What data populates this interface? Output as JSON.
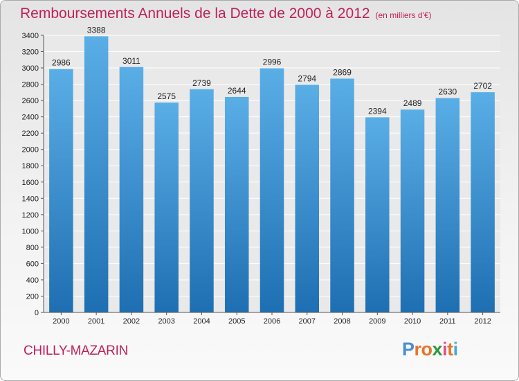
{
  "title": "Remboursements Annuels de la Dette de 2000 à 2012",
  "unit_note": "(en milliers d'€)",
  "city": "CHILLY-MAZARIN",
  "brand": {
    "letters": [
      "P",
      "r",
      "o",
      "x",
      "i",
      "t",
      "i"
    ],
    "colors": [
      "#4a8fd4",
      "#e8742a",
      "#e8742a",
      "#2b9a3a",
      "#e84a8a",
      "#e8742a",
      "#4aa8d8"
    ]
  },
  "colors": {
    "bar_light": "#5aaee6",
    "bar_dark": "#1e6fb2",
    "title": "#c0205a"
  },
  "chart_data": {
    "type": "bar",
    "title": "Remboursements Annuels de la Dette de 2000 à 2012",
    "xlabel": "",
    "ylabel": "(en milliers d'€)",
    "categories": [
      "2000",
      "2001",
      "2002",
      "2003",
      "2004",
      "2005",
      "2006",
      "2007",
      "2008",
      "2009",
      "2010",
      "2011",
      "2012"
    ],
    "values": [
      2986,
      3388,
      3011,
      2575,
      2739,
      2644,
      2996,
      2794,
      2869,
      2394,
      2489,
      2630,
      2702
    ],
    "ylim": [
      0,
      3400
    ],
    "yticks": [
      0,
      200,
      400,
      600,
      800,
      1000,
      1200,
      1400,
      1600,
      1800,
      2000,
      2200,
      2400,
      2600,
      2800,
      3000,
      3200,
      3400
    ],
    "grid": true
  }
}
